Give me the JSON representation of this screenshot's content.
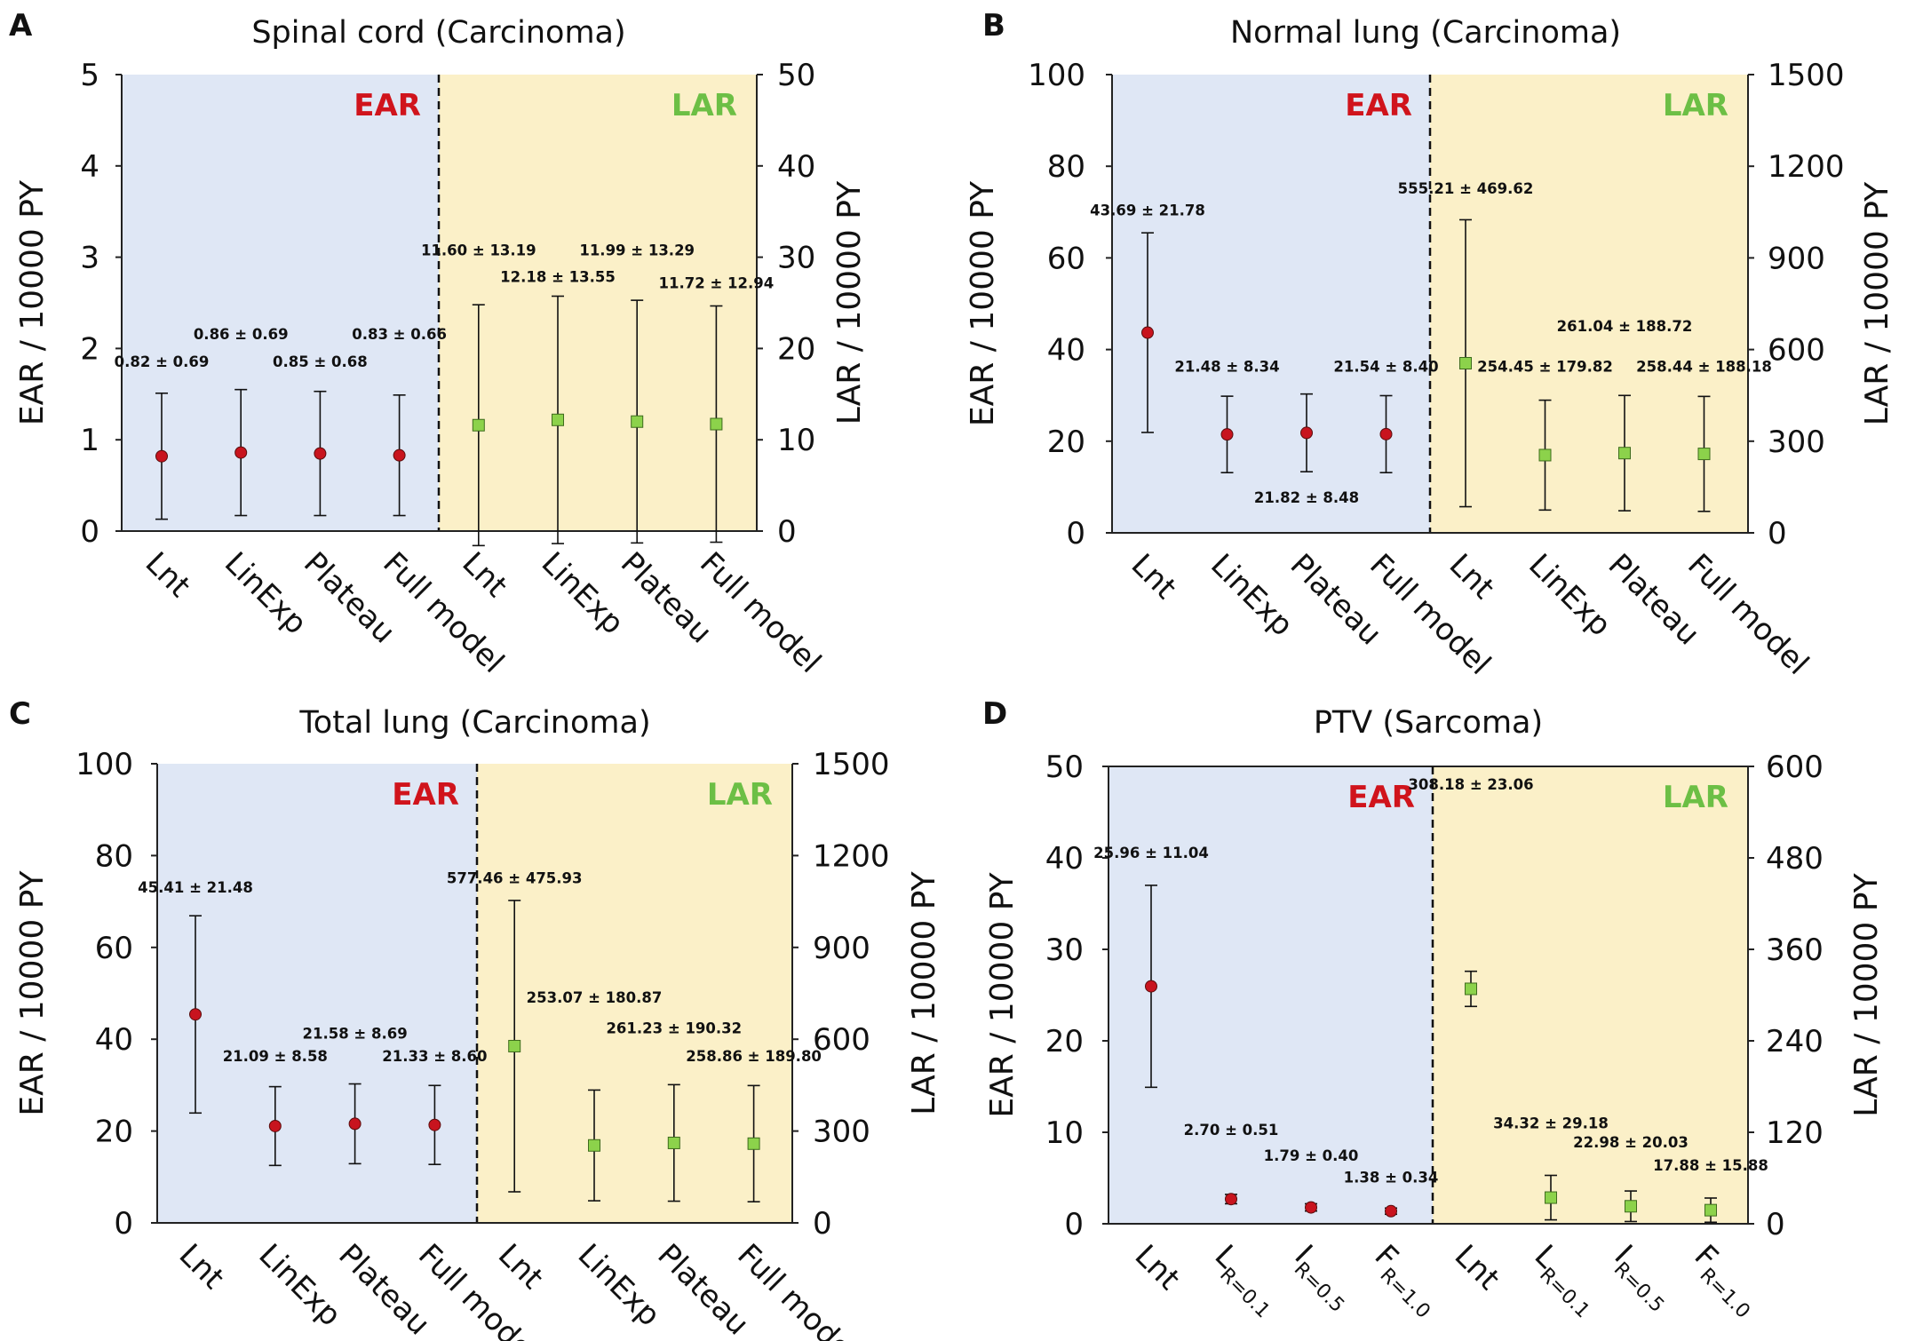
{
  "colors": {
    "ear_bg": "#dfe7f5",
    "lar_bg": "#fbf0c8",
    "ear_marker": "#c8141e",
    "lar_marker": "#8cd24b",
    "ear_text": "#d0141c",
    "lar_text": "#6cbf45",
    "axis": "#222222"
  },
  "chart_data": [
    {
      "type": "scatter",
      "panel": "A",
      "title": "Spinal cord (Carcinoma)",
      "ylabel_left": "EAR / 10000 PY",
      "ylabel_right": "LAR / 10000 PY",
      "ylim_left": [
        0,
        5
      ],
      "ylim_right": [
        0,
        50
      ],
      "yticks_left": [
        0,
        1,
        2,
        3,
        4,
        5
      ],
      "yticks_right": [
        0,
        10,
        20,
        30,
        40,
        50
      ],
      "region_labels": [
        "EAR",
        "LAR"
      ],
      "categories": [
        {
          "label": "Lnt",
          "sub": ""
        },
        {
          "label": "LinExp",
          "sub": ""
        },
        {
          "label": "Plateau",
          "sub": ""
        },
        {
          "label": "Full model",
          "sub": ""
        },
        {
          "label": "Lnt",
          "sub": ""
        },
        {
          "label": "LinExp",
          "sub": ""
        },
        {
          "label": "Plateau",
          "sub": ""
        },
        {
          "label": "Full model",
          "sub": ""
        }
      ],
      "series": [
        {
          "name": "EAR",
          "axis": "left",
          "marker": "circle",
          "values": [
            0.82,
            0.86,
            0.85,
            0.83
          ],
          "errors": [
            0.69,
            0.69,
            0.68,
            0.66
          ],
          "labels": [
            "0.82 ± 0.69",
            "0.86 ± 0.69",
            "0.85 ± 0.68",
            "0.83 ± 0.66"
          ],
          "label_y": [
            1.8,
            2.1,
            1.8,
            2.1
          ]
        },
        {
          "name": "LAR",
          "axis": "right",
          "marker": "square",
          "values": [
            11.6,
            12.18,
            11.99,
            11.72
          ],
          "errors": [
            13.19,
            13.55,
            13.29,
            12.94
          ],
          "labels": [
            "11.60 ± 13.19",
            "12.18 ± 13.55",
            "11.99 ± 13.29",
            "11.72 ± 12.94"
          ],
          "label_y": [
            30.2,
            27.3,
            30.2,
            26.6
          ]
        }
      ]
    },
    {
      "type": "scatter",
      "panel": "B",
      "title": "Normal lung (Carcinoma)",
      "ylabel_left": "EAR / 10000 PY",
      "ylabel_right": "LAR / 10000 PY",
      "ylim_left": [
        0,
        100
      ],
      "ylim_right": [
        0,
        1500
      ],
      "yticks_left": [
        0,
        20,
        40,
        60,
        80,
        100
      ],
      "yticks_right": [
        0,
        300,
        600,
        900,
        1200,
        1500
      ],
      "region_labels": [
        "EAR",
        "LAR"
      ],
      "categories": [
        {
          "label": "Lnt",
          "sub": ""
        },
        {
          "label": "LinExp",
          "sub": ""
        },
        {
          "label": "Plateau",
          "sub": ""
        },
        {
          "label": "Full model",
          "sub": ""
        },
        {
          "label": "Lnt",
          "sub": ""
        },
        {
          "label": "LinExp",
          "sub": ""
        },
        {
          "label": "Plateau",
          "sub": ""
        },
        {
          "label": "Full model",
          "sub": ""
        }
      ],
      "series": [
        {
          "name": "EAR",
          "axis": "left",
          "marker": "circle",
          "values": [
            43.69,
            21.48,
            21.82,
            21.54
          ],
          "errors": [
            21.78,
            8.34,
            8.48,
            8.4
          ],
          "labels": [
            "43.69 ± 21.78",
            "21.48 ± 8.34",
            "21.82 ± 8.48",
            "21.54 ± 8.40"
          ],
          "label_y": [
            69.3,
            35.2,
            6.6,
            35.2
          ]
        },
        {
          "name": "LAR",
          "axis": "right",
          "marker": "square",
          "values": [
            555.21,
            254.45,
            261.04,
            258.44
          ],
          "errors": [
            469.62,
            179.82,
            188.72,
            188.18
          ],
          "labels": [
            "555.21 ± 469.62",
            "254.45 ± 179.82",
            "261.04 ± 188.72",
            "258.44 ± 188.18"
          ],
          "label_y": [
            1110,
            528,
            660,
            528
          ]
        }
      ]
    },
    {
      "type": "scatter",
      "panel": "C",
      "title": "Total lung (Carcinoma)",
      "ylabel_left": "EAR / 10000 PY",
      "ylabel_right": "LAR / 10000 PY",
      "ylim_left": [
        0,
        100
      ],
      "ylim_right": [
        0,
        1500
      ],
      "yticks_left": [
        0,
        20,
        40,
        60,
        80,
        100
      ],
      "yticks_right": [
        0,
        300,
        600,
        900,
        1200,
        1500
      ],
      "region_labels": [
        "EAR",
        "LAR"
      ],
      "categories": [
        {
          "label": "Lnt",
          "sub": ""
        },
        {
          "label": "LinExp",
          "sub": ""
        },
        {
          "label": "Plateau",
          "sub": ""
        },
        {
          "label": "Full model",
          "sub": ""
        },
        {
          "label": "Lnt",
          "sub": ""
        },
        {
          "label": "LinExp",
          "sub": ""
        },
        {
          "label": "Plateau",
          "sub": ""
        },
        {
          "label": "Full model",
          "sub": ""
        }
      ],
      "series": [
        {
          "name": "EAR",
          "axis": "left",
          "marker": "circle",
          "values": [
            45.41,
            21.09,
            21.58,
            21.33
          ],
          "errors": [
            21.48,
            8.58,
            8.69,
            8.6
          ],
          "labels": [
            "45.41 ± 21.48",
            "21.09 ± 8.58",
            "21.58 ± 8.69",
            "21.33 ± 8.60"
          ],
          "label_y": [
            72.0,
            35.2,
            40.1,
            35.2
          ]
        },
        {
          "name": "LAR",
          "axis": "right",
          "marker": "square",
          "values": [
            577.46,
            253.07,
            261.23,
            258.86
          ],
          "errors": [
            475.93,
            180.87,
            190.32,
            189.8
          ],
          "labels": [
            "577.46 ± 475.93",
            "253.07 ± 180.87",
            "261.23 ± 190.32",
            "258.86 ± 189.80"
          ],
          "label_y": [
            1110,
            720,
            620,
            528
          ]
        }
      ]
    },
    {
      "type": "scatter",
      "panel": "D",
      "title": "PTV (Sarcoma)",
      "ylabel_left": "EAR / 10000 PY",
      "ylabel_right": "LAR / 10000 PY",
      "ylim_left": [
        0,
        50
      ],
      "ylim_right": [
        0,
        600
      ],
      "yticks_left": [
        0,
        10,
        20,
        30,
        40,
        50
      ],
      "yticks_right": [
        0,
        120,
        240,
        360,
        480,
        600
      ],
      "region_labels": [
        "EAR",
        "LAR"
      ],
      "categories": [
        {
          "label": "Lnt",
          "sub": ""
        },
        {
          "label": "L",
          "sub": "R=0.1"
        },
        {
          "label": "I",
          "sub": "R=0.5"
        },
        {
          "label": "F",
          "sub": "R=1.0"
        },
        {
          "label": "Lnt",
          "sub": ""
        },
        {
          "label": "L",
          "sub": "R=0.1"
        },
        {
          "label": "I",
          "sub": "R=0.5"
        },
        {
          "label": "F",
          "sub": "R=1.0"
        }
      ],
      "series": [
        {
          "name": "EAR",
          "axis": "left",
          "marker": "circle",
          "values": [
            25.96,
            2.7,
            1.79,
            1.38
          ],
          "errors": [
            11.04,
            0.51,
            0.4,
            0.34
          ],
          "labels": [
            "25.96 ± 11.04",
            "2.70 ± 0.51",
            "1.79 ± 0.40",
            "1.38 ± 0.34"
          ],
          "label_y": [
            40.0,
            9.7,
            6.9,
            4.5
          ]
        },
        {
          "name": "LAR",
          "axis": "right",
          "marker": "square",
          "values": [
            308.18,
            34.32,
            22.98,
            17.88
          ],
          "errors": [
            23.06,
            29.18,
            20.03,
            15.88
          ],
          "labels": [
            "308.18 ± 23.06",
            "34.32 ± 29.18",
            "22.98 ± 20.03",
            "17.88 ± 15.88"
          ],
          "label_y": [
            570,
            125,
            100,
            70
          ]
        }
      ]
    }
  ]
}
